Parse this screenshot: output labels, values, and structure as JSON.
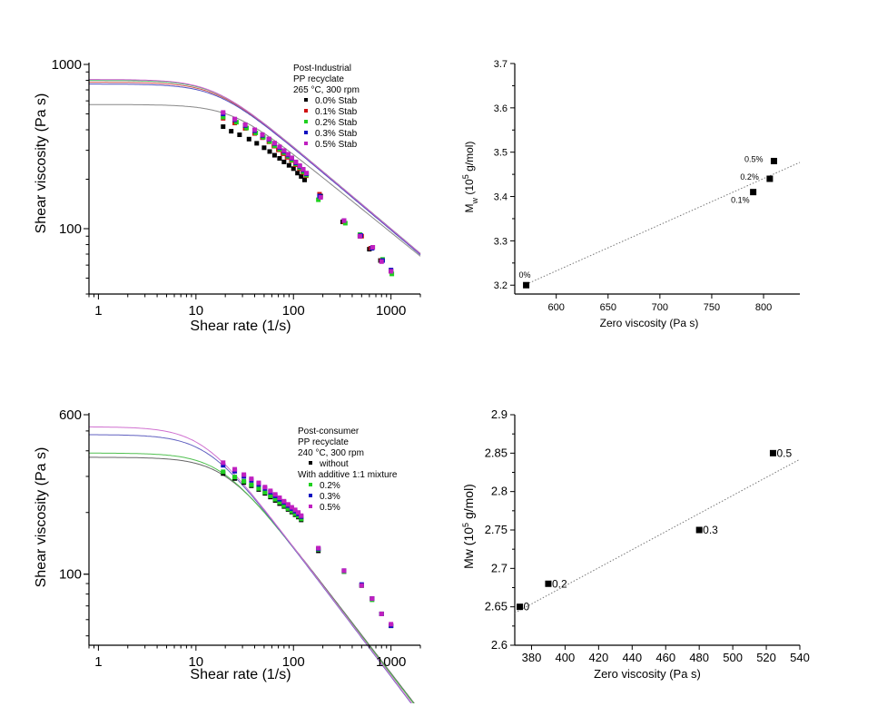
{
  "chart_data": [
    {
      "id": "p1",
      "type": "line",
      "xscale": "log",
      "yscale": "log",
      "xlim": [
        0.8,
        2000
      ],
      "ylim": [
        40,
        1000
      ],
      "xlabel": "Shear rate (1/s)",
      "ylabel": "Shear viscosity (Pa s)",
      "xticks": [
        {
          "v": 1,
          "l": "1"
        },
        {
          "v": 10,
          "l": "10"
        },
        {
          "v": 100,
          "l": "100"
        },
        {
          "v": 1000,
          "l": "1000"
        }
      ],
      "yticks": [
        {
          "v": 100,
          "l": "100"
        },
        {
          "v": 1000,
          "l": "1000"
        }
      ],
      "legend": {
        "title": [
          "Post-Industrial",
          "PP recyclate",
          "265 °C, 300 rpm"
        ],
        "entries": [
          {
            "name": "0.0% Stab"
          },
          {
            "name": "0.1% Stab"
          },
          {
            "name": "0.2% Stab"
          },
          {
            "name": "0.3% Stab"
          },
          {
            "name": "0.5% Stab"
          }
        ]
      },
      "series": [
        {
          "name": "0.0% Stab",
          "color": "#000000",
          "curve": "#888888",
          "eta0": 570,
          "tau": 0.042,
          "n": 0.52,
          "points": [
            [
              19,
              418
            ],
            [
              23,
              392
            ],
            [
              28,
              373
            ],
            [
              35,
              351
            ],
            [
              42,
              331
            ],
            [
              50,
              311
            ],
            [
              57,
              295
            ],
            [
              64,
              280
            ],
            [
              72,
              268
            ],
            [
              80,
              255
            ],
            [
              90,
              243
            ],
            [
              100,
              232
            ],
            [
              110,
              218
            ],
            [
              120,
              208
            ],
            [
              130,
              198
            ],
            [
              190,
              158
            ],
            [
              320,
              110
            ],
            [
              480,
              90
            ],
            [
              600,
              75
            ],
            [
              780,
              64
            ],
            [
              1000,
              55
            ]
          ]
        },
        {
          "name": "0.1% Stab",
          "color": "#d01010",
          "curve": "#d05050",
          "eta0": 780,
          "tau": 0.062,
          "n": 0.5,
          "points": [
            [
              19,
              470
            ],
            [
              25,
              440
            ],
            [
              32,
              408
            ],
            [
              40,
              380
            ],
            [
              48,
              358
            ],
            [
              56,
              338
            ],
            [
              63,
              318
            ],
            [
              70,
              302
            ],
            [
              78,
              286
            ],
            [
              86,
              272
            ],
            [
              95,
              260
            ],
            [
              105,
              245
            ],
            [
              115,
              232
            ],
            [
              125,
              220
            ],
            [
              135,
              210
            ],
            [
              185,
              162
            ],
            [
              330,
              110
            ],
            [
              500,
              90
            ],
            [
              620,
              76
            ],
            [
              800,
              64
            ],
            [
              1000,
              55
            ]
          ]
        },
        {
          "name": "0.2% Stab",
          "color": "#20d020",
          "curve": "#40c060",
          "eta0": 800,
          "tau": 0.064,
          "n": 0.5,
          "points": [
            [
              19,
              478
            ],
            [
              26,
              445
            ],
            [
              33,
              410
            ],
            [
              41,
              383
            ],
            [
              49,
              360
            ],
            [
              57,
              340
            ],
            [
              64,
              320
            ],
            [
              72,
              305
            ],
            [
              80,
              290
            ],
            [
              88,
              276
            ],
            [
              96,
              262
            ],
            [
              106,
              248
            ],
            [
              116,
              235
            ],
            [
              126,
              222
            ],
            [
              136,
              212
            ],
            [
              180,
              150
            ],
            [
              340,
              108
            ],
            [
              480,
              92
            ],
            [
              650,
              77
            ],
            [
              820,
              65
            ],
            [
              1020,
              53
            ]
          ]
        },
        {
          "name": "0.3% Stab",
          "color": "#1010c0",
          "curve": "#5050c0",
          "eta0": 760,
          "tau": 0.06,
          "n": 0.5,
          "points": [
            [
              19,
              500
            ],
            [
              25,
              460
            ],
            [
              32,
              425
            ],
            [
              40,
              395
            ],
            [
              48,
              370
            ],
            [
              56,
              350
            ],
            [
              64,
              330
            ],
            [
              72,
              312
            ],
            [
              80,
              296
            ],
            [
              88,
              281
            ],
            [
              96,
              268
            ],
            [
              106,
              252
            ],
            [
              116,
              240
            ],
            [
              126,
              228
            ],
            [
              136,
              216
            ],
            [
              185,
              158
            ],
            [
              330,
              112
            ],
            [
              490,
              91
            ],
            [
              640,
              76
            ],
            [
              820,
              64
            ],
            [
              1000,
              56
            ]
          ]
        },
        {
          "name": "0.5% Stab",
          "color": "#c020c0",
          "curve": "#d060d0",
          "eta0": 810,
          "tau": 0.066,
          "n": 0.5,
          "points": [
            [
              19,
              510
            ],
            [
              25,
              465
            ],
            [
              32,
              430
            ],
            [
              40,
              400
            ],
            [
              48,
              374
            ],
            [
              56,
              352
            ],
            [
              64,
              332
            ],
            [
              72,
              315
            ],
            [
              80,
              299
            ],
            [
              88,
              284
            ],
            [
              96,
              270
            ],
            [
              106,
              255
            ],
            [
              116,
              242
            ],
            [
              126,
              230
            ],
            [
              136,
              218
            ],
            [
              190,
              155
            ],
            [
              330,
              112
            ],
            [
              480,
              90
            ],
            [
              650,
              77
            ],
            [
              800,
              63
            ],
            [
              1000,
              55
            ]
          ]
        }
      ]
    },
    {
      "id": "p2",
      "type": "scatter",
      "xlim": [
        560,
        835
      ],
      "ylim": [
        3.18,
        3.7
      ],
      "xlabel": "Zero viscosity (Pa s)",
      "ylabel_main": "M",
      "ylabel_sub": "w",
      "ylabel_rest": " (10",
      "ylabel_sup": "5",
      "ylabel_end": " g/mol)",
      "xticks": [
        600,
        650,
        700,
        750,
        800
      ],
      "yticks": [
        3.2,
        3.3,
        3.4,
        3.5,
        3.6,
        3.7
      ],
      "points": [
        {
          "x": 571,
          "y": 3.2,
          "label": "0%",
          "anchor": "above"
        },
        {
          "x": 790,
          "y": 3.41,
          "label": "0.1%",
          "anchor": "below-left"
        },
        {
          "x": 806,
          "y": 3.44,
          "label": "0.2%",
          "anchor": "left"
        },
        {
          "x": 810,
          "y": 3.48,
          "label": "0.5%",
          "anchor": "left"
        }
      ],
      "fit": [
        [
          571,
          3.202
        ],
        [
          835,
          3.477
        ]
      ]
    },
    {
      "id": "p3",
      "type": "line",
      "xscale": "log",
      "yscale": "log",
      "xlim": [
        0.8,
        2000
      ],
      "ylim": [
        45,
        600
      ],
      "xlabel": "Shear rate (1/s)",
      "ylabel": "Shear viscosity (Pa s)",
      "xticks": [
        {
          "v": 1,
          "l": "1"
        },
        {
          "v": 10,
          "l": "10"
        },
        {
          "v": 100,
          "l": "100"
        },
        {
          "v": 1000,
          "l": "1000"
        }
      ],
      "yticks": [
        {
          "v": 100,
          "l": "100"
        },
        {
          "v": 600,
          "l": "600"
        }
      ],
      "legend": {
        "title": [
          "Post-consumer",
          "PP recyclate",
          "240 °C, 300 rpm"
        ],
        "entries": [
          {
            "name": "without"
          },
          {
            "name": "With additive 1:1 mixture",
            "header": true
          },
          {
            "name": "0.2%"
          },
          {
            "name": "0.3%"
          },
          {
            "name": "0.5%"
          }
        ]
      },
      "series": [
        {
          "name": "without",
          "color": "#000000",
          "curve": "#666666",
          "eta0": 372,
          "tau": 0.05,
          "n": 0.38,
          "points": [
            [
              19,
              310
            ],
            [
              25,
              293
            ],
            [
              31,
              280
            ],
            [
              37,
              270
            ],
            [
              44,
              259
            ],
            [
              51,
              248
            ],
            [
              58,
              238
            ],
            [
              65,
              229
            ],
            [
              72,
              221
            ],
            [
              80,
              214
            ],
            [
              88,
              207
            ],
            [
              96,
              201
            ],
            [
              104,
              195
            ],
            [
              112,
              190
            ],
            [
              120,
              184
            ],
            [
              180,
              130
            ],
            [
              330,
              103
            ],
            [
              500,
              88
            ],
            [
              640,
              76
            ],
            [
              800,
              64
            ],
            [
              1000,
              56
            ]
          ]
        },
        {
          "name": "0.2%",
          "color": "#20d020",
          "curve": "#50c050",
          "eta0": 390,
          "tau": 0.055,
          "n": 0.38,
          "points": [
            [
              19,
              316
            ],
            [
              25,
              298
            ],
            [
              31,
              284
            ],
            [
              37,
              273
            ],
            [
              44,
              262
            ],
            [
              51,
              251
            ],
            [
              58,
              241
            ],
            [
              65,
              232
            ],
            [
              72,
              224
            ],
            [
              80,
              216
            ],
            [
              88,
              209
            ],
            [
              96,
              203
            ],
            [
              104,
              197
            ],
            [
              112,
              192
            ],
            [
              120,
              186
            ],
            [
              180,
              132
            ],
            [
              330,
              103
            ],
            [
              500,
              88
            ],
            [
              640,
              75
            ],
            [
              800,
              64
            ],
            [
              1000,
              56
            ]
          ]
        },
        {
          "name": "0.3%",
          "color": "#1010c0",
          "curve": "#6060c0",
          "eta0": 480,
          "tau": 0.075,
          "n": 0.37,
          "points": [
            [
              19,
              340
            ],
            [
              25,
              318
            ],
            [
              31,
              300
            ],
            [
              37,
              287
            ],
            [
              44,
              274
            ],
            [
              51,
              262
            ],
            [
              58,
              251
            ],
            [
              65,
              241
            ],
            [
              72,
              232
            ],
            [
              80,
              224
            ],
            [
              88,
              216
            ],
            [
              96,
              209
            ],
            [
              104,
              203
            ],
            [
              112,
              197
            ],
            [
              120,
              191
            ],
            [
              180,
              133
            ],
            [
              330,
              104
            ],
            [
              500,
              89
            ],
            [
              640,
              76
            ],
            [
              800,
              64
            ],
            [
              1000,
              56
            ]
          ]
        },
        {
          "name": "0.5%",
          "color": "#c020c0",
          "curve": "#d070d0",
          "eta0": 524,
          "tau": 0.085,
          "n": 0.37,
          "points": [
            [
              19,
              350
            ],
            [
              25,
              325
            ],
            [
              31,
              306
            ],
            [
              37,
              292
            ],
            [
              44,
              279
            ],
            [
              51,
              266
            ],
            [
              58,
              255
            ],
            [
              65,
              245
            ],
            [
              72,
              236
            ],
            [
              80,
              227
            ],
            [
              88,
              219
            ],
            [
              96,
              212
            ],
            [
              104,
              206
            ],
            [
              112,
              200
            ],
            [
              120,
              193
            ],
            [
              180,
              134
            ],
            [
              330,
              104
            ],
            [
              500,
              88
            ],
            [
              640,
              76
            ],
            [
              800,
              64
            ],
            [
              1000,
              57
            ]
          ]
        }
      ]
    },
    {
      "id": "p4",
      "type": "scatter",
      "xlim": [
        370,
        540
      ],
      "ylim": [
        2.6,
        2.9
      ],
      "xlabel": "Zero viscosity (Pa s)",
      "ylabel_main": "Mw",
      "ylabel_sub": "",
      "ylabel_rest": " (10",
      "ylabel_sup": "5",
      "ylabel_end": " g/mol)",
      "xticks": [
        380,
        400,
        420,
        440,
        460,
        480,
        500,
        520,
        540
      ],
      "yticks": [
        2.6,
        2.65,
        2.7,
        2.75,
        2.8,
        2.85,
        2.9
      ],
      "points": [
        {
          "x": 373,
          "y": 2.65,
          "label": "0",
          "anchor": "right"
        },
        {
          "x": 390,
          "y": 2.68,
          "label": "0.2",
          "anchor": "right"
        },
        {
          "x": 480,
          "y": 2.75,
          "label": "0.3",
          "anchor": "right"
        },
        {
          "x": 524,
          "y": 2.85,
          "label": "0.5",
          "anchor": "right"
        }
      ],
      "fit": [
        [
          370,
          2.642
        ],
        [
          540,
          2.842
        ]
      ]
    }
  ]
}
